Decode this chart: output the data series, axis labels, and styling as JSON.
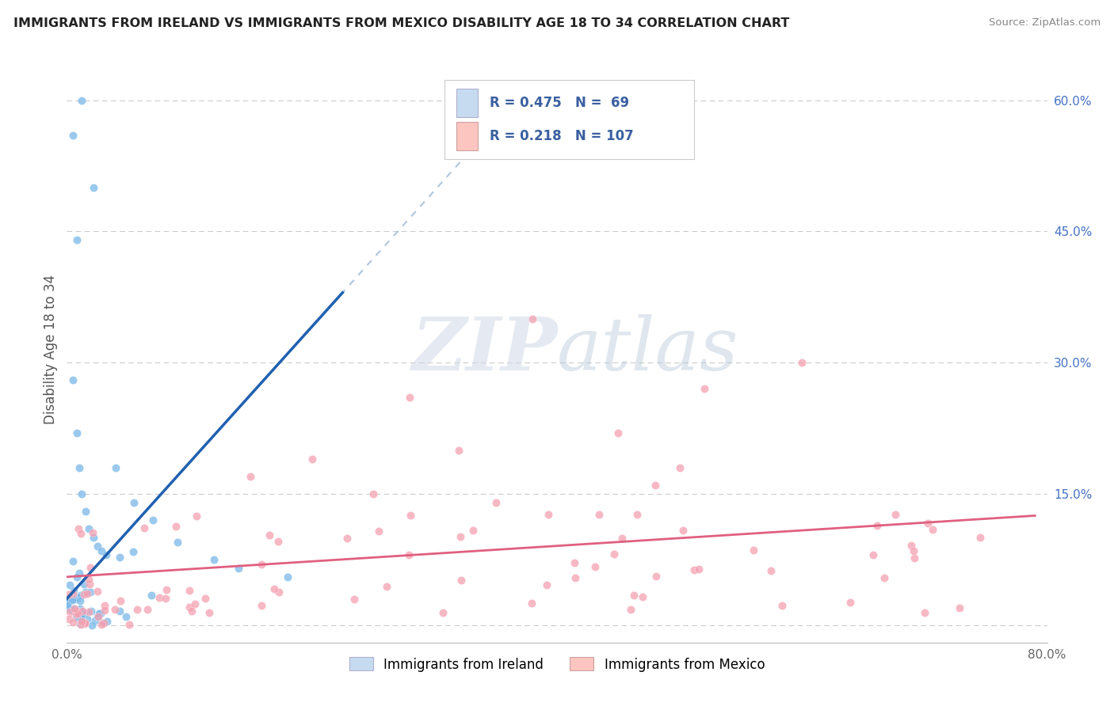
{
  "title": "IMMIGRANTS FROM IRELAND VS IMMIGRANTS FROM MEXICO DISABILITY AGE 18 TO 34 CORRELATION CHART",
  "source_text": "Source: ZipAtlas.com",
  "ylabel": "Disability Age 18 to 34",
  "xlim": [
    0.0,
    0.8
  ],
  "ylim": [
    -0.02,
    0.65
  ],
  "xtick_positions": [
    0.0,
    0.1,
    0.2,
    0.3,
    0.4,
    0.5,
    0.6,
    0.7,
    0.8
  ],
  "xticklabels": [
    "0.0%",
    "",
    "",
    "",
    "",
    "",
    "",
    "",
    "80.0%"
  ],
  "ytick_positions": [
    0.0,
    0.15,
    0.3,
    0.45,
    0.6
  ],
  "yticklabels_right": [
    "",
    "15.0%",
    "30.0%",
    "45.0%",
    "60.0%"
  ],
  "ireland_scatter_color": "#7ab8e8",
  "ireland_line_color": "#2060b0",
  "ireland_dash_color": "#9ab8d8",
  "ireland_fill_color": "#c6dbef",
  "mexico_scatter_color": "#f4a0b0",
  "mexico_line_color": "#e06080",
  "mexico_fill_color": "#fcc5c0",
  "R_ireland": 0.475,
  "N_ireland": 69,
  "R_mexico": 0.218,
  "N_mexico": 107,
  "watermark_zip": "ZIP",
  "watermark_atlas": "atlas",
  "legend_label_ireland": "Immigrants from Ireland",
  "legend_label_mexico": "Immigrants from Mexico",
  "ytick_color": "#4472c4",
  "title_color": "#222222",
  "source_color": "#888888",
  "ylabel_color": "#555555"
}
